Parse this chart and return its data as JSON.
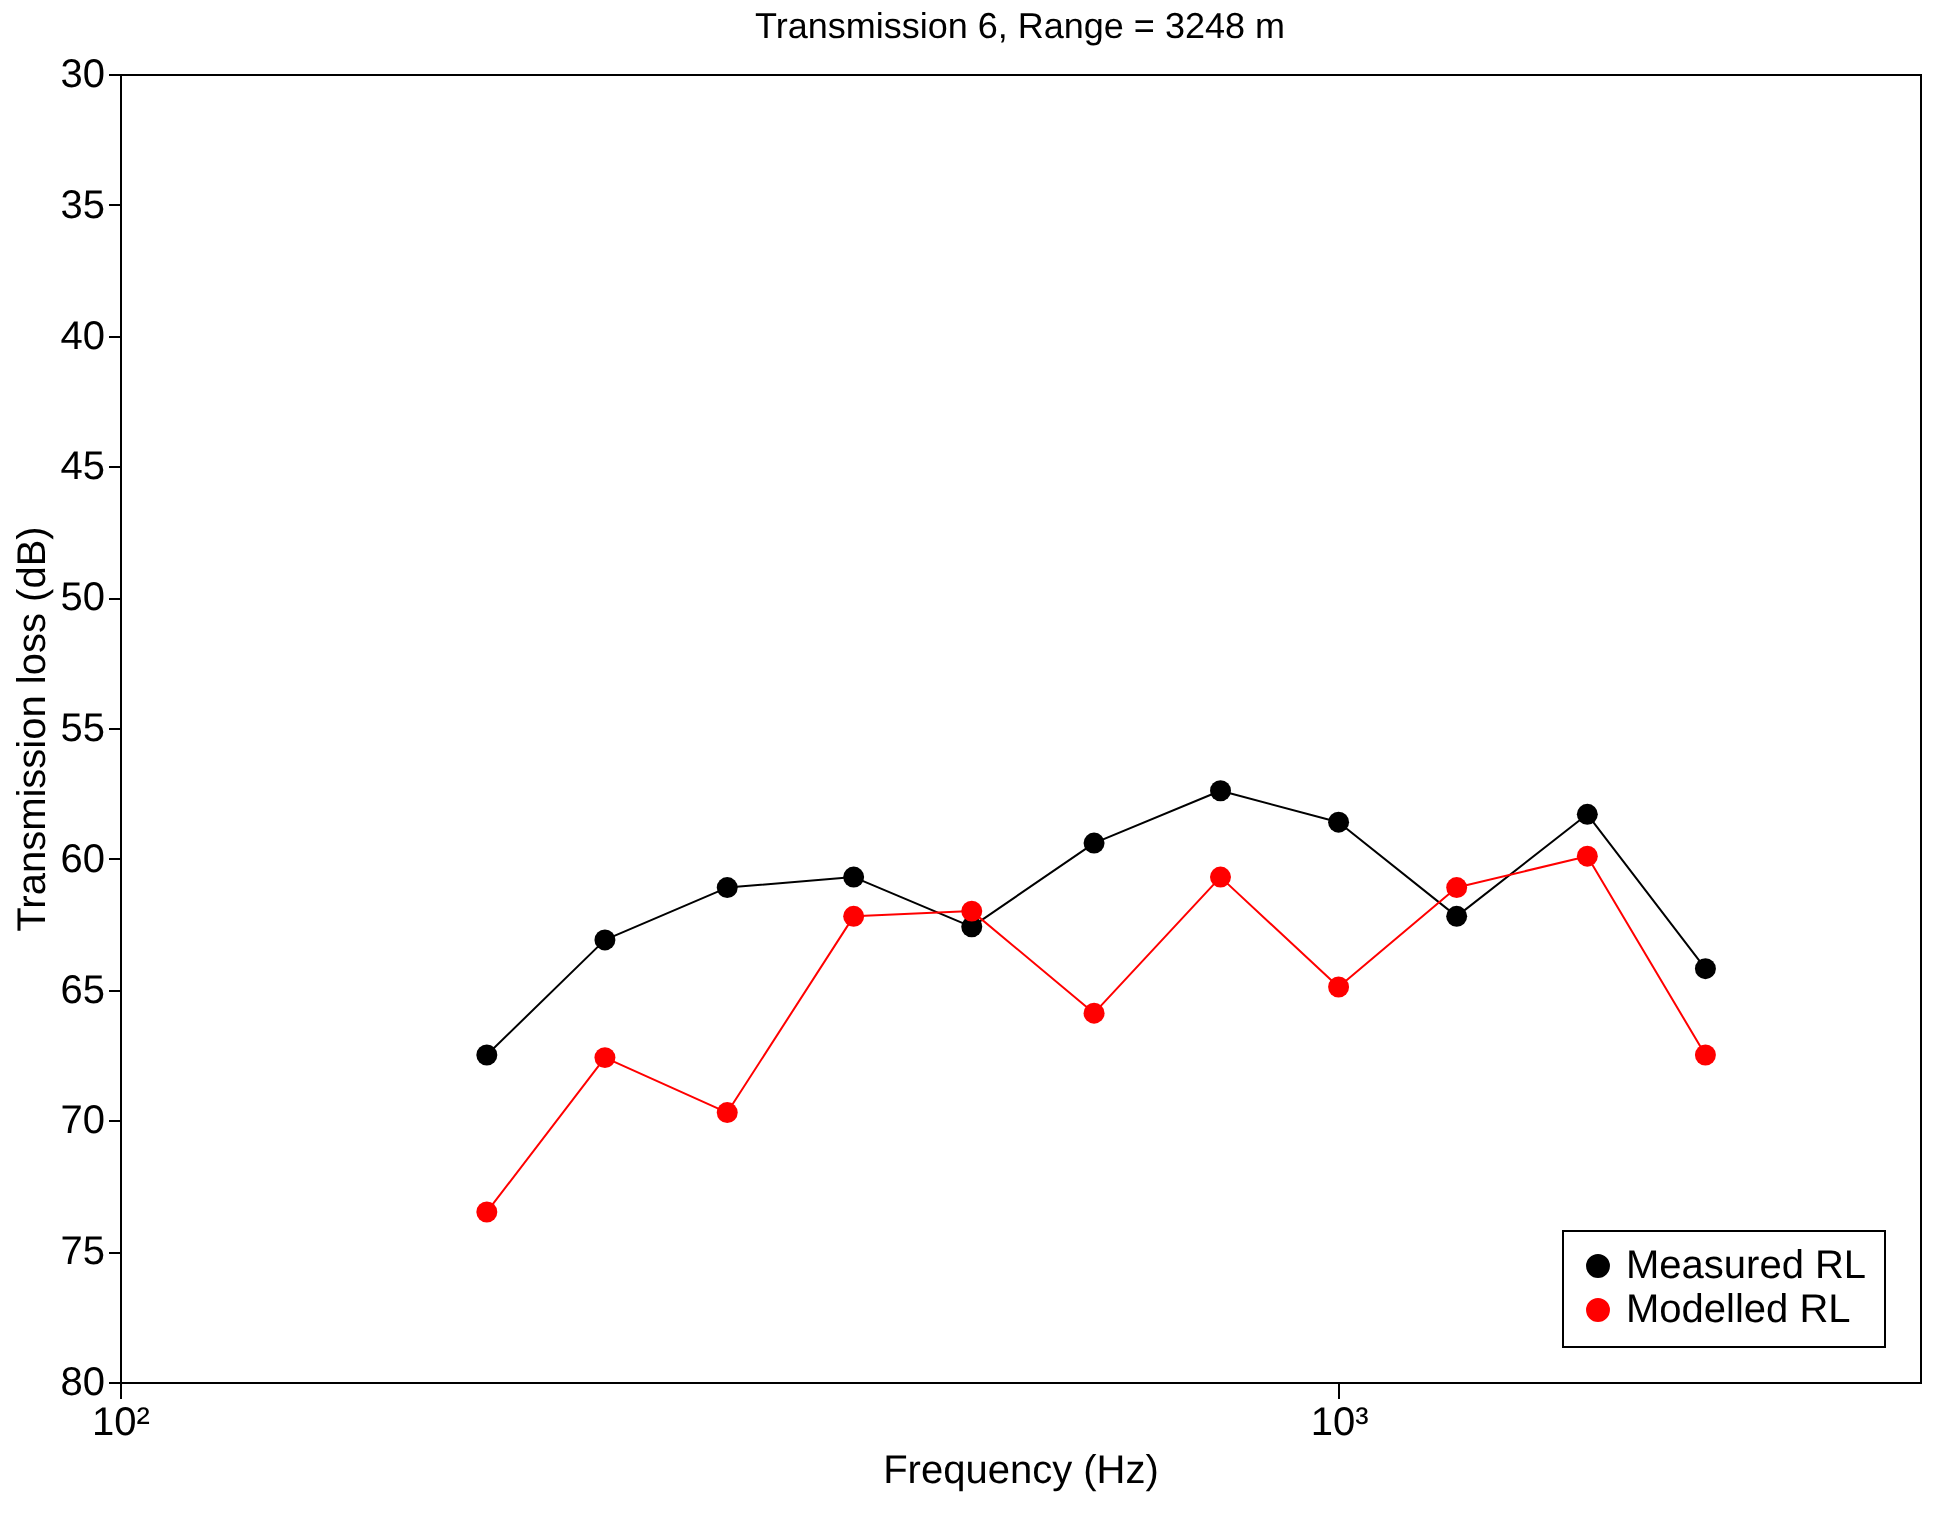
{
  "chart_data": {
    "type": "line",
    "title": "Transmission 6, Range = 3248 m",
    "xlabel": "Frequency (Hz)",
    "ylabel": "Transmission loss (dB)",
    "x": [
      200,
      250,
      315,
      400,
      500,
      630,
      800,
      1000,
      1250,
      1600,
      2000
    ],
    "series": [
      {
        "name": "Measured RL",
        "color": "#000000",
        "values": [
          67.5,
          63.1,
          61.1,
          60.7,
          62.6,
          59.4,
          57.4,
          58.6,
          62.2,
          58.3,
          64.2
        ]
      },
      {
        "name": "Modelled RL",
        "color": "#ff0000",
        "values": [
          73.5,
          67.6,
          69.7,
          62.2,
          62.0,
          65.9,
          60.7,
          64.9,
          61.1,
          59.9,
          67.5
        ]
      }
    ],
    "log": "x",
    "xlim": [
      100,
      3000
    ],
    "xticks": [
      {
        "value": 100,
        "label": "10²"
      },
      {
        "value": 1000,
        "label": "10³"
      }
    ],
    "ylim": [
      80,
      30
    ],
    "yticks": [
      30,
      35,
      40,
      45,
      50,
      55,
      60,
      65,
      70,
      75,
      80
    ],
    "grid": false,
    "legend": "bottom right",
    "marker": "circle",
    "line_style": "solid"
  }
}
